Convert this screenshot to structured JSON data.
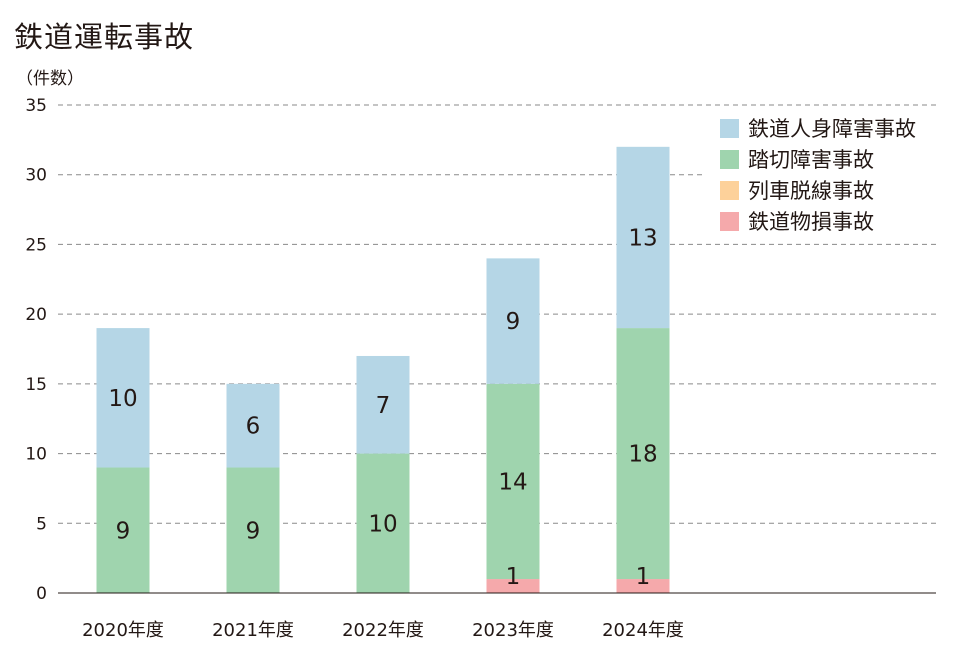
{
  "chart_data": {
    "type": "bar",
    "stacked": true,
    "title": "鉄道運転事故",
    "ylabel": "（件数）",
    "xlabel": "",
    "ylim": [
      0,
      35
    ],
    "yticks": [
      0,
      5,
      10,
      15,
      20,
      25,
      30,
      35
    ],
    "grid": true,
    "legend_position": "top-right",
    "categories": [
      "2020年度",
      "2021年度",
      "2022年度",
      "2023年度",
      "2024年度"
    ],
    "series": [
      {
        "name": "鉄道物損事故",
        "color": "#f5a9ab",
        "values": [
          0,
          0,
          0,
          1,
          1
        ]
      },
      {
        "name": "列車脱線事故",
        "color": "#fdd19a",
        "values": [
          0,
          0,
          0,
          0,
          0
        ]
      },
      {
        "name": "踏切障害事故",
        "color": "#9fd4ae",
        "values": [
          9,
          9,
          10,
          14,
          18
        ]
      },
      {
        "name": "鉄道人身障害事故",
        "color": "#b5d6e6",
        "values": [
          10,
          6,
          7,
          9,
          13
        ]
      }
    ],
    "legend_order": [
      "鉄道人身障害事故",
      "踏切障害事故",
      "列車脱線事故",
      "鉄道物損事故"
    ]
  }
}
